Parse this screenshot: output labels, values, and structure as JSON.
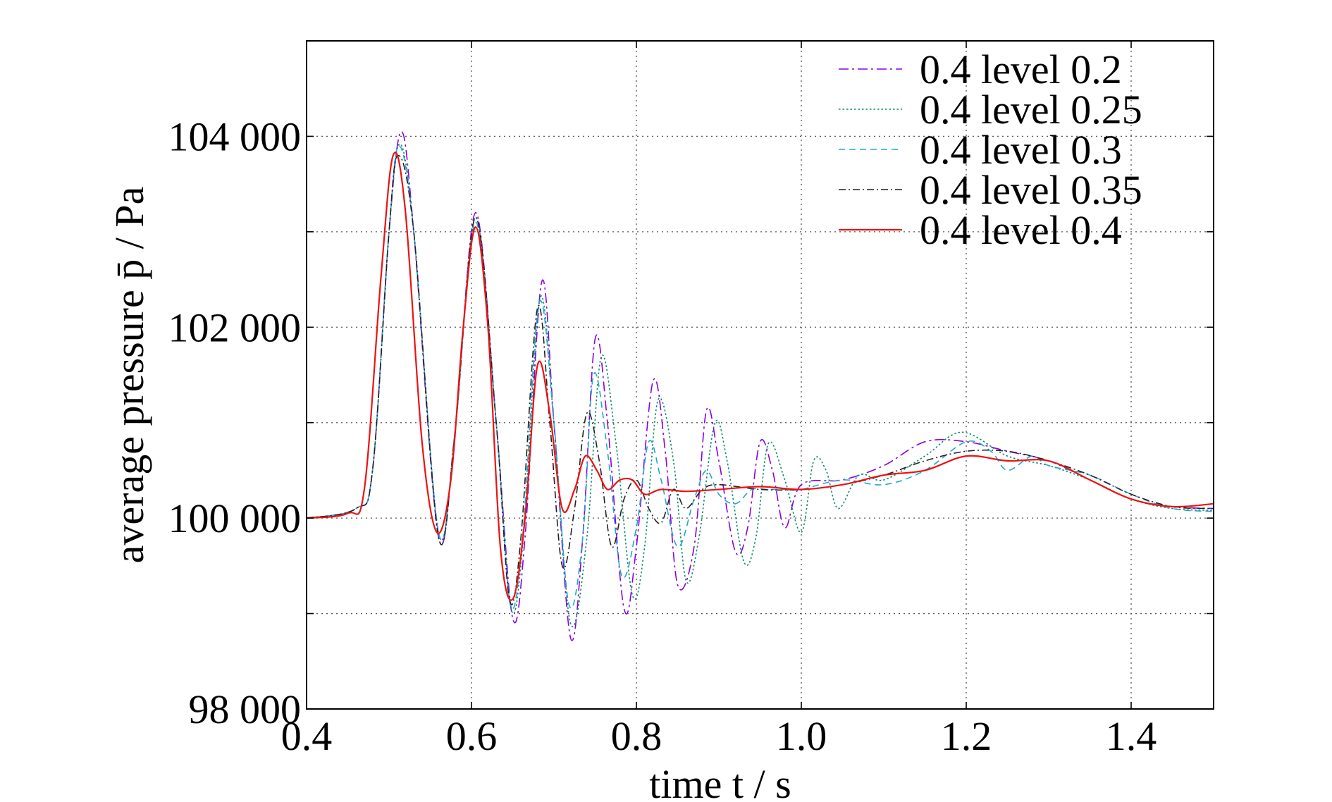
{
  "chart_data": {
    "type": "line",
    "xlabel": "time t / s",
    "ylabel": "average pressure p̄ / Pa",
    "xlim": [
      0.4,
      1.5
    ],
    "ylim": [
      98000,
      105000
    ],
    "xticks": [
      0.4,
      0.6,
      0.8,
      1.0,
      1.2,
      1.4
    ],
    "xtick_labels": [
      "0.4",
      "0.6",
      "0.8",
      "1.0",
      "1.2",
      "1.4"
    ],
    "yticks": [
      98000,
      100000,
      102000,
      104000
    ],
    "ytick_labels": [
      "98 000",
      "100 000",
      "102 000",
      "104 000"
    ],
    "ygrid_minor": [
      99000,
      101000,
      103000
    ],
    "grid": true,
    "legend_position": "top-right",
    "series": [
      {
        "name": "0.4 level 0.2",
        "color": "#8a00e6",
        "dash": "dashdot",
        "x": [
          0.4,
          0.46,
          0.48,
          0.5,
          0.515,
          0.53,
          0.56,
          0.58,
          0.605,
          0.63,
          0.65,
          0.665,
          0.685,
          0.7,
          0.72,
          0.735,
          0.75,
          0.765,
          0.785,
          0.8,
          0.82,
          0.835,
          0.85,
          0.87,
          0.885,
          0.9,
          0.92,
          0.935,
          0.95,
          0.965,
          0.98,
          1.0,
          1.05,
          1.1,
          1.15,
          1.2,
          1.25,
          1.3,
          1.35,
          1.4,
          1.45,
          1.5
        ],
        "y": [
          100000,
          100100,
          100500,
          103000,
          104050,
          103000,
          99800,
          100900,
          103200,
          101000,
          98950,
          99800,
          102470,
          101000,
          98750,
          99800,
          101880,
          101000,
          99050,
          99700,
          101430,
          100700,
          99300,
          99700,
          101130,
          100600,
          99650,
          99900,
          100800,
          100500,
          99900,
          100350,
          100400,
          100550,
          100800,
          100800,
          100700,
          100600,
          100400,
          100200,
          100120,
          100100
        ]
      },
      {
        "name": "0.4 level 0.25",
        "color": "#0a8a6a",
        "dash": "dotted",
        "x": [
          0.4,
          0.46,
          0.48,
          0.5,
          0.513,
          0.53,
          0.56,
          0.58,
          0.605,
          0.63,
          0.648,
          0.663,
          0.683,
          0.7,
          0.72,
          0.74,
          0.757,
          0.775,
          0.795,
          0.81,
          0.826,
          0.845,
          0.86,
          0.876,
          0.895,
          0.91,
          0.93,
          0.945,
          0.96,
          0.98,
          1.0,
          1.015,
          1.03,
          1.045,
          1.07,
          1.1,
          1.15,
          1.195,
          1.25,
          1.3,
          1.35,
          1.4,
          1.45,
          1.5
        ],
        "y": [
          100000,
          100100,
          100500,
          103000,
          103920,
          103000,
          99850,
          100900,
          103150,
          101000,
          99050,
          99800,
          102300,
          101000,
          98900,
          99800,
          101680,
          100800,
          99200,
          99700,
          101230,
          100600,
          99350,
          99800,
          100990,
          100600,
          99550,
          99800,
          100780,
          100400,
          99850,
          100600,
          100500,
          100100,
          100450,
          100400,
          100650,
          100900,
          100650,
          100550,
          100400,
          100200,
          100100,
          100080
        ]
      },
      {
        "name": "0.4 level 0.3",
        "color": "#22a8cc",
        "dash": "dashed",
        "x": [
          0.4,
          0.46,
          0.48,
          0.5,
          0.512,
          0.53,
          0.56,
          0.58,
          0.605,
          0.63,
          0.647,
          0.662,
          0.682,
          0.7,
          0.718,
          0.735,
          0.748,
          0.765,
          0.782,
          0.8,
          0.815,
          0.83,
          0.85,
          0.87,
          0.885,
          0.9,
          0.92,
          0.94,
          0.96,
          0.98,
          1.0,
          1.05,
          1.1,
          1.15,
          1.2,
          1.23,
          1.25,
          1.28,
          1.3,
          1.35,
          1.4,
          1.45,
          1.5
        ],
        "y": [
          100000,
          100100,
          100500,
          103000,
          103900,
          103000,
          99850,
          100900,
          103100,
          101000,
          99100,
          99800,
          102250,
          101000,
          99100,
          99800,
          101500,
          100700,
          99400,
          99900,
          100800,
          100400,
          99700,
          100200,
          100500,
          100250,
          100150,
          100300,
          100300,
          100300,
          100300,
          100400,
          100350,
          100500,
          100800,
          100700,
          100500,
          100650,
          100550,
          100450,
          100250,
          100100,
          100070
        ]
      },
      {
        "name": "0.4 level 0.35",
        "color": "#222222",
        "dash": "dashdot-fine",
        "x": [
          0.4,
          0.46,
          0.48,
          0.5,
          0.511,
          0.53,
          0.56,
          0.58,
          0.605,
          0.63,
          0.646,
          0.66,
          0.68,
          0.695,
          0.71,
          0.725,
          0.74,
          0.755,
          0.77,
          0.785,
          0.8,
          0.815,
          0.83,
          0.845,
          0.86,
          0.88,
          0.9,
          0.95,
          1.0,
          1.05,
          1.1,
          1.15,
          1.2,
          1.25,
          1.3,
          1.35,
          1.4,
          1.45,
          1.5
        ],
        "y": [
          100000,
          100100,
          100500,
          103000,
          103800,
          103000,
          99800,
          100900,
          103150,
          101000,
          99150,
          99800,
          102200,
          101000,
          99500,
          100100,
          101100,
          100600,
          99700,
          100200,
          100400,
          100100,
          99950,
          100300,
          100100,
          100300,
          100350,
          100300,
          100300,
          100350,
          100450,
          100600,
          100700,
          100700,
          100600,
          100450,
          100250,
          100120,
          100100
        ]
      },
      {
        "name": "0.4 level 0.4",
        "color": "#ee1111",
        "dash": "solid",
        "x": [
          0.4,
          0.45,
          0.47,
          0.49,
          0.505,
          0.52,
          0.54,
          0.558,
          0.575,
          0.59,
          0.605,
          0.62,
          0.635,
          0.65,
          0.665,
          0.68,
          0.695,
          0.71,
          0.725,
          0.738,
          0.752,
          0.765,
          0.78,
          0.795,
          0.81,
          0.83,
          0.86,
          0.9,
          0.95,
          1.0,
          1.05,
          1.1,
          1.15,
          1.2,
          1.25,
          1.3,
          1.35,
          1.4,
          1.45,
          1.5
        ],
        "y": [
          100000,
          100050,
          100300,
          102500,
          103800,
          103200,
          100800,
          99850,
          100400,
          102000,
          103050,
          102000,
          99700,
          99150,
          100000,
          101600,
          101100,
          100100,
          100300,
          100650,
          100500,
          100300,
          100400,
          100400,
          100250,
          100300,
          100280,
          100300,
          100330,
          100300,
          100350,
          100450,
          100500,
          100650,
          100600,
          100600,
          100400,
          100200,
          100120,
          100150
        ]
      }
    ]
  }
}
